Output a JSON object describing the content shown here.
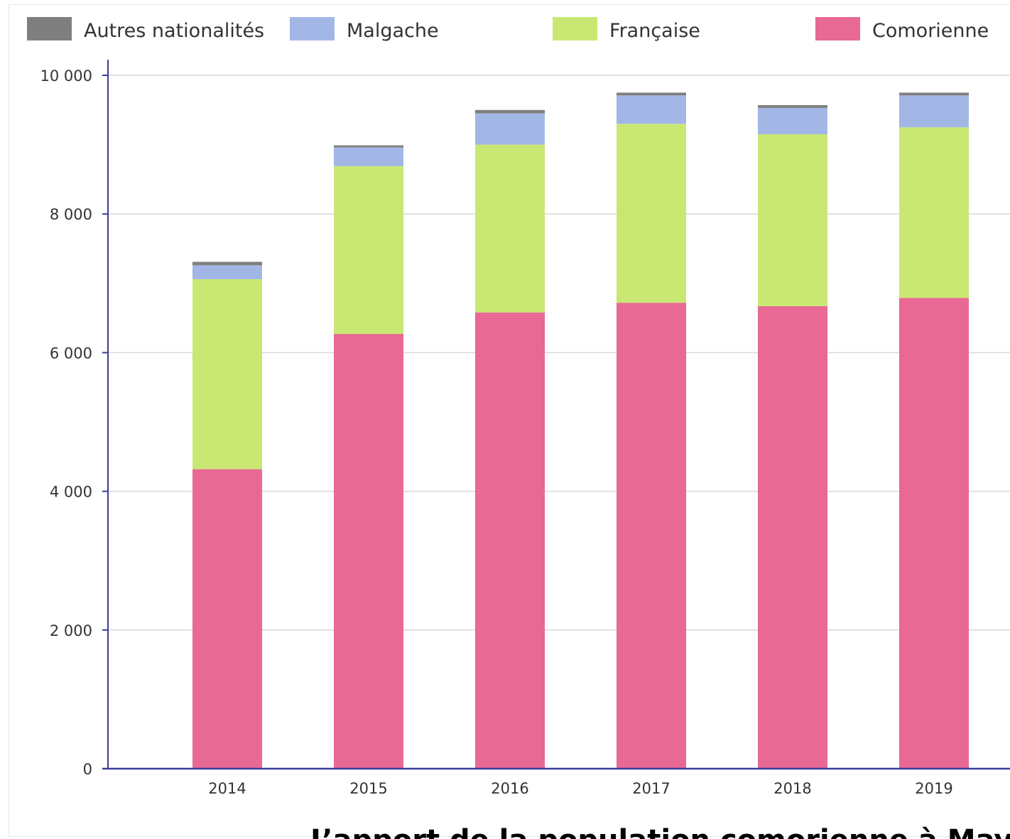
{
  "caption": "L’apport de la population comorienne à Mayotte",
  "chart_data": {
    "type": "bar",
    "stacked": true,
    "categories": [
      "2014",
      "2015",
      "2016",
      "2017",
      "2018",
      "2019"
    ],
    "series": [
      {
        "name": "Comorienne",
        "color": "#e76994",
        "values": [
          4320,
          6270,
          6580,
          6720,
          6670,
          6790
        ]
      },
      {
        "name": "Française",
        "color": "#c9e873",
        "values": [
          2740,
          2420,
          2420,
          2580,
          2480,
          2460
        ]
      },
      {
        "name": "Malgache",
        "color": "#a3b7e6",
        "values": [
          200,
          270,
          450,
          410,
          380,
          460
        ]
      },
      {
        "name": "Autres nationalités",
        "color": "#7f7f7f",
        "values": [
          50,
          30,
          50,
          40,
          40,
          40
        ]
      }
    ],
    "legend_order": [
      "Autres nationalités",
      "Malgache",
      "Française",
      "Comorienne"
    ],
    "legend_position": "top",
    "ylim": [
      0,
      10000
    ],
    "yticks": [
      0,
      2000,
      4000,
      6000,
      8000,
      10000
    ],
    "ytick_labels": [
      "0",
      "2 000",
      "4 000",
      "6 000",
      "8 000",
      "10 000"
    ],
    "grid": true,
    "xlabel": "",
    "ylabel": "",
    "title": ""
  }
}
